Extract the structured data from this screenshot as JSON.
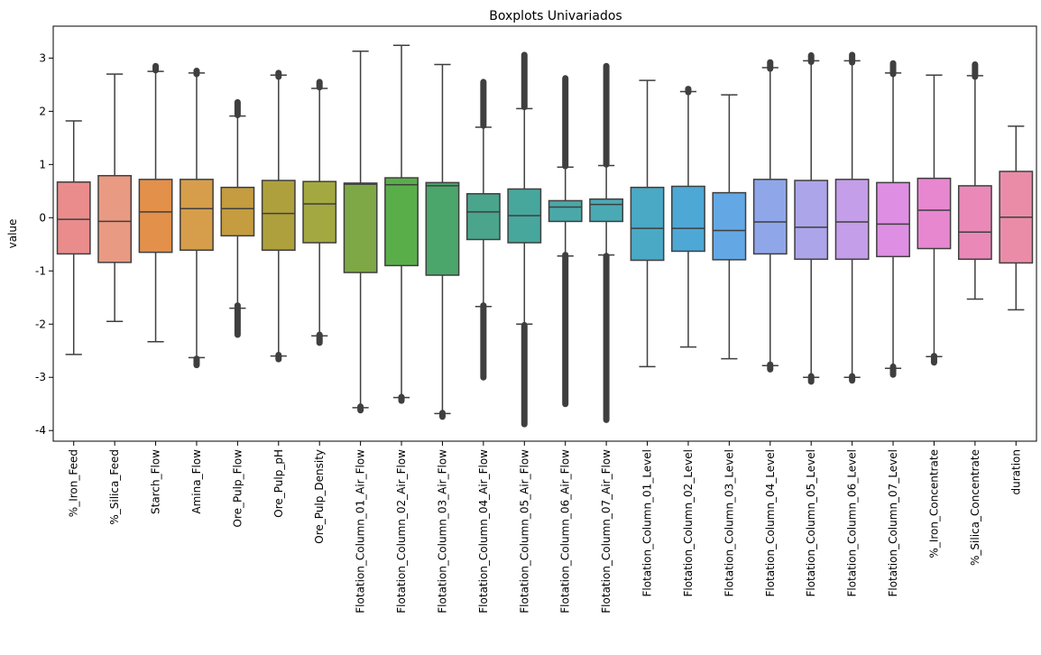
{
  "chart_data": {
    "type": "boxplot",
    "title": "Boxplots Univariados",
    "xlabel": "",
    "ylabel": "value",
    "ylim": [
      -4.2,
      3.6
    ],
    "yticks": [
      -4,
      -3,
      -2,
      -1,
      0,
      1,
      2,
      3
    ],
    "grid": false,
    "categories": [
      "%_Iron_Feed",
      "%_Silica_Feed",
      "Starch_Flow",
      "Amina_Flow",
      "Ore_Pulp_Flow",
      "Ore_Pulp_pH",
      "Ore_Pulp_Density",
      "Flotation_Column_01_Air_Flow",
      "Flotation_Column_02_Air_Flow",
      "Flotation_Column_03_Air_Flow",
      "Flotation_Column_04_Air_Flow",
      "Flotation_Column_05_Air_Flow",
      "Flotation_Column_06_Air_Flow",
      "Flotation_Column_07_Air_Flow",
      "Flotation_Column_01_Level",
      "Flotation_Column_02_Level",
      "Flotation_Column_03_Level",
      "Flotation_Column_04_Level",
      "Flotation_Column_05_Level",
      "Flotation_Column_06_Level",
      "Flotation_Column_07_Level",
      "%_Iron_Concentrate",
      "%_Silica_Concentrate",
      "duration"
    ],
    "colors": [
      "#ea8c8c",
      "#e99a82",
      "#e3904b",
      "#d69e4b",
      "#c59c3f",
      "#afa03e",
      "#a3a840",
      "#7ea846",
      "#5aae4a",
      "#4ba66b",
      "#4aa58c",
      "#47a79c",
      "#4aa8a8",
      "#4aaab4",
      "#4aa9c4",
      "#4ea8d6",
      "#63a8e4",
      "#8fa7e9",
      "#ada5ea",
      "#c49ee8",
      "#de8fe3",
      "#e787d0",
      "#ea89b8",
      "#ea8ca8"
    ],
    "boxes": [
      {
        "q1": -0.68,
        "median": -0.03,
        "q3": 0.67,
        "whisker_low": -2.57,
        "whisker_high": 1.82,
        "outliers_low": [],
        "outliers_high": []
      },
      {
        "q1": -0.84,
        "median": -0.07,
        "q3": 0.79,
        "whisker_low": -1.95,
        "whisker_high": 2.7,
        "outliers_low": [],
        "outliers_high": []
      },
      {
        "q1": -0.65,
        "median": 0.11,
        "q3": 0.72,
        "whisker_low": -2.33,
        "whisker_high": 2.75,
        "outliers_low": [],
        "outliers_high": [
          2.77,
          2.85
        ]
      },
      {
        "q1": -0.61,
        "median": 0.17,
        "q3": 0.72,
        "whisker_low": -2.63,
        "whisker_high": 2.72,
        "outliers_low": [
          -2.77,
          -2.65
        ],
        "outliers_high": [
          2.7,
          2.76
        ]
      },
      {
        "q1": -0.34,
        "median": 0.17,
        "q3": 0.57,
        "whisker_low": -1.7,
        "whisker_high": 1.91,
        "outliers_low": [
          -2.2,
          -1.65
        ],
        "outliers_high": [
          1.93,
          2.17
        ]
      },
      {
        "q1": -0.61,
        "median": 0.08,
        "q3": 0.7,
        "whisker_low": -2.6,
        "whisker_high": 2.68,
        "outliers_low": [
          -2.66,
          -2.58
        ],
        "outliers_high": [
          2.65,
          2.72
        ]
      },
      {
        "q1": -0.47,
        "median": 0.26,
        "q3": 0.68,
        "whisker_low": -2.22,
        "whisker_high": 2.43,
        "outliers_low": [
          -2.35,
          -2.2
        ],
        "outliers_high": [
          2.45,
          2.55
        ]
      },
      {
        "q1": -1.03,
        "median": 0.63,
        "q3": 0.65,
        "whisker_low": -3.57,
        "whisker_high": 3.13,
        "outliers_low": [
          -3.62,
          -3.55
        ],
        "outliers_high": []
      },
      {
        "q1": -0.9,
        "median": 0.62,
        "q3": 0.75,
        "whisker_low": -3.38,
        "whisker_high": 3.24,
        "outliers_low": [
          -3.44,
          -3.37
        ],
        "outliers_high": []
      },
      {
        "q1": -1.08,
        "median": 0.6,
        "q3": 0.66,
        "whisker_low": -3.68,
        "whisker_high": 2.88,
        "outliers_low": [
          -3.74,
          -3.67
        ],
        "outliers_high": []
      },
      {
        "q1": -0.41,
        "median": 0.11,
        "q3": 0.45,
        "whisker_low": -1.67,
        "whisker_high": 1.7,
        "outliers_low": [
          -3.0,
          -1.65
        ],
        "outliers_high": [
          1.73,
          2.55
        ]
      },
      {
        "q1": -0.47,
        "median": 0.04,
        "q3": 0.54,
        "whisker_low": -2.0,
        "whisker_high": 2.05,
        "outliers_low": [
          -3.88,
          -2.02
        ],
        "outliers_high": [
          2.08,
          3.06
        ]
      },
      {
        "q1": -0.07,
        "median": 0.2,
        "q3": 0.32,
        "whisker_low": -0.72,
        "whisker_high": 0.95,
        "outliers_low": [
          -3.5,
          -0.7
        ],
        "outliers_high": [
          0.97,
          2.62
        ]
      },
      {
        "q1": -0.07,
        "median": 0.25,
        "q3": 0.35,
        "whisker_low": -0.7,
        "whisker_high": 0.98,
        "outliers_low": [
          -3.8,
          -0.72
        ],
        "outliers_high": [
          1.0,
          2.85
        ]
      },
      {
        "q1": -0.8,
        "median": -0.2,
        "q3": 0.57,
        "whisker_low": -2.8,
        "whisker_high": 2.58,
        "outliers_low": [],
        "outliers_high": []
      },
      {
        "q1": -0.63,
        "median": -0.2,
        "q3": 0.59,
        "whisker_low": -2.43,
        "whisker_high": 2.37,
        "outliers_low": [],
        "outliers_high": [
          2.36,
          2.42
        ]
      },
      {
        "q1": -0.79,
        "median": -0.24,
        "q3": 0.47,
        "whisker_low": -2.65,
        "whisker_high": 2.31,
        "outliers_low": [],
        "outliers_high": []
      },
      {
        "q1": -0.68,
        "median": -0.08,
        "q3": 0.72,
        "whisker_low": -2.78,
        "whisker_high": 2.82,
        "outliers_low": [
          -2.85,
          -2.76
        ],
        "outliers_high": [
          2.8,
          2.92
        ]
      },
      {
        "q1": -0.78,
        "median": -0.18,
        "q3": 0.7,
        "whisker_low": -3.0,
        "whisker_high": 2.95,
        "outliers_low": [
          -3.08,
          -2.98
        ],
        "outliers_high": [
          2.93,
          3.05
        ]
      },
      {
        "q1": -0.78,
        "median": -0.08,
        "q3": 0.72,
        "whisker_low": -3.0,
        "whisker_high": 2.95,
        "outliers_low": [
          -3.06,
          -2.98
        ],
        "outliers_high": [
          2.92,
          3.06
        ]
      },
      {
        "q1": -0.73,
        "median": -0.12,
        "q3": 0.66,
        "whisker_low": -2.83,
        "whisker_high": 2.72,
        "outliers_low": [
          -2.95,
          -2.8
        ],
        "outliers_high": [
          2.7,
          2.9
        ]
      },
      {
        "q1": -0.58,
        "median": 0.14,
        "q3": 0.74,
        "whisker_low": -2.61,
        "whisker_high": 2.68,
        "outliers_low": [
          -2.72,
          -2.6
        ],
        "outliers_high": []
      },
      {
        "q1": -0.78,
        "median": -0.27,
        "q3": 0.6,
        "whisker_low": -1.53,
        "whisker_high": 2.67,
        "outliers_low": [],
        "outliers_high": [
          2.65,
          2.88
        ]
      },
      {
        "q1": -0.85,
        "median": 0.01,
        "q3": 0.87,
        "whisker_low": -1.73,
        "whisker_high": 1.72,
        "outliers_low": [],
        "outliers_high": []
      }
    ]
  }
}
